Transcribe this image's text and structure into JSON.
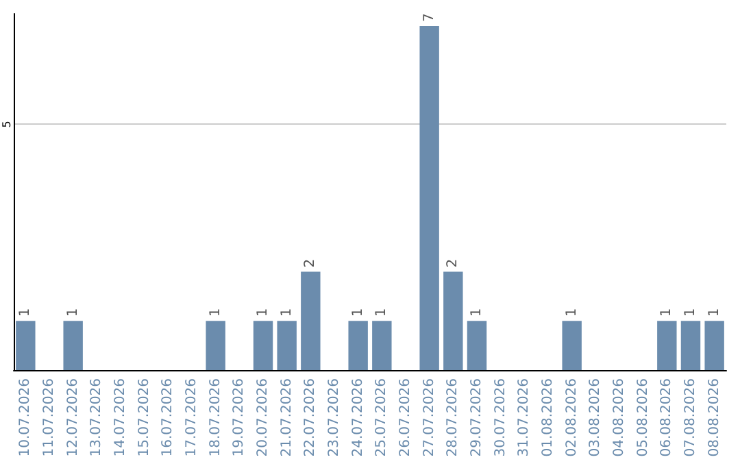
{
  "chart_data": {
    "type": "bar",
    "categories": [
      "10.07.2026",
      "11.07.2026",
      "12.07.2026",
      "13.07.2026",
      "14.07.2026",
      "15.07.2026",
      "16.07.2026",
      "17.07.2026",
      "18.07.2026",
      "19.07.2026",
      "20.07.2026",
      "21.07.2026",
      "22.07.2026",
      "23.07.2026",
      "24.07.2026",
      "25.07.2026",
      "26.07.2026",
      "27.07.2026",
      "28.07.2026",
      "29.07.2026",
      "30.07.2026",
      "31.07.2026",
      "01.08.2026",
      "02.08.2026",
      "03.08.2026",
      "04.08.2026",
      "05.08.2026",
      "06.08.2026",
      "07.08.2026",
      "08.08.2026"
    ],
    "values": [
      1,
      0,
      1,
      0,
      0,
      0,
      0,
      0,
      1,
      0,
      1,
      1,
      2,
      0,
      1,
      1,
      0,
      7,
      2,
      1,
      0,
      0,
      0,
      1,
      0,
      0,
      0,
      1,
      1,
      1
    ],
    "value_labels": [
      "1",
      null,
      "1",
      null,
      null,
      null,
      null,
      null,
      "1",
      null,
      "1",
      "1",
      "2",
      null,
      "1",
      "1",
      null,
      "7",
      "2",
      "1",
      null,
      null,
      null,
      "1",
      null,
      null,
      null,
      "1",
      "1",
      "1"
    ],
    "color": "#6b8cad",
    "ylim": [
      0,
      7.25
    ],
    "yticks": [
      5
    ],
    "grid": "y"
  }
}
